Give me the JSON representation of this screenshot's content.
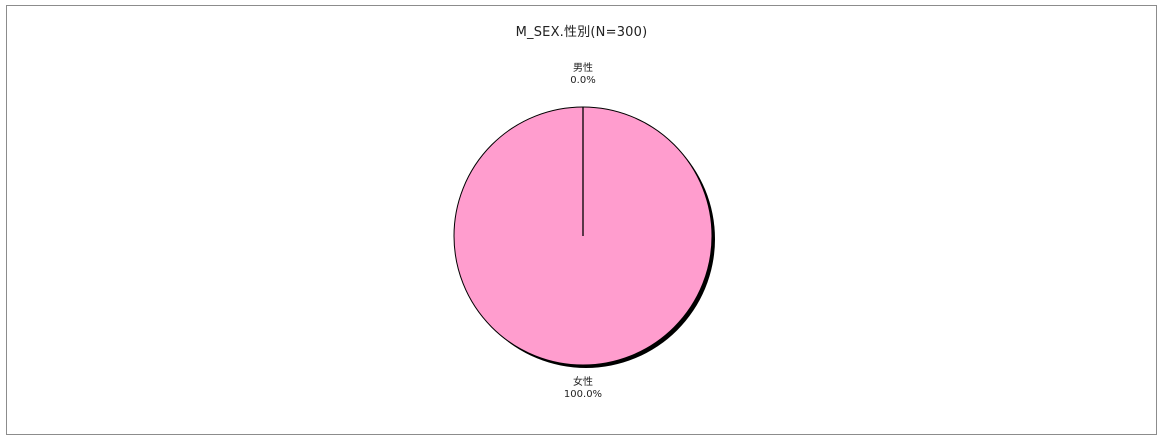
{
  "chart_data": {
    "type": "pie",
    "title": "M_SEX.性別(N=300)",
    "slices": [
      {
        "label": "男性",
        "value": 0.0,
        "value_label": "0.0%",
        "color": "#ff9dce"
      },
      {
        "label": "女性",
        "value": 100.0,
        "value_label": "100.0%",
        "color": "#ff9dce"
      }
    ],
    "legend": "none"
  }
}
